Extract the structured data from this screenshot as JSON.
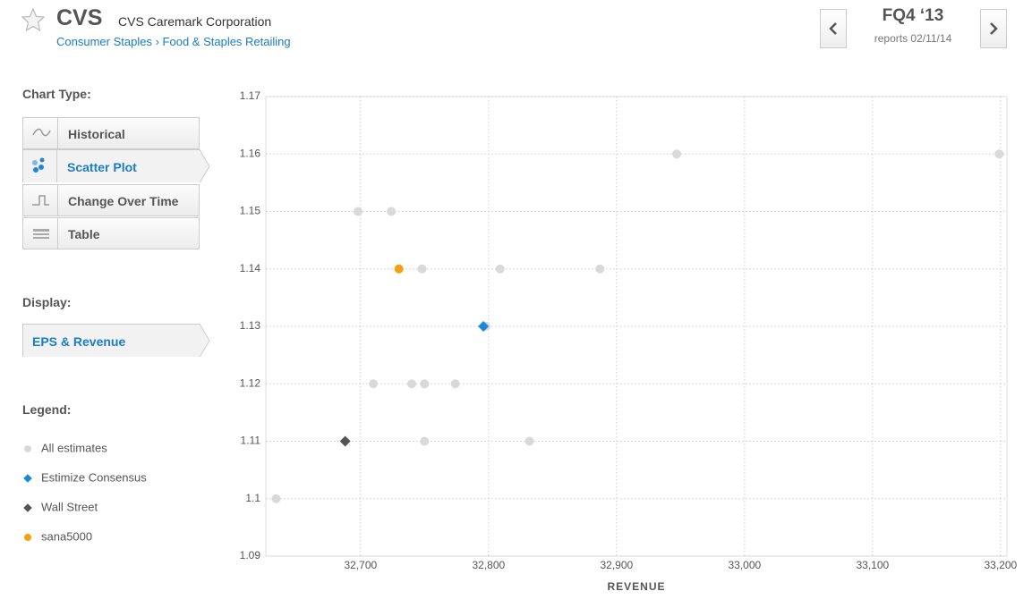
{
  "header": {
    "ticker": "CVS",
    "company": "CVS Caremark Corporation",
    "breadcrumb": [
      "Consumer Staples",
      "Food & Staples Retailing"
    ],
    "breadcrumb_separator": "›",
    "quarter": "FQ4 ‘13",
    "report_date": "reports 02/11/14"
  },
  "sidebar": {
    "chart_type_label": "Chart Type:",
    "chart_types": [
      "Historical",
      "Scatter Plot",
      "Change Over Time",
      "Table"
    ],
    "display_label": "Display:",
    "display_option": "EPS & Revenue",
    "legend_label": "Legend:"
  },
  "chart_data": {
    "type": "scatter",
    "x_label": "REVENUE",
    "xlim": [
      32626,
      33205
    ],
    "xticks": [
      {
        "value": 32700,
        "label": "32,700"
      },
      {
        "value": 32800,
        "label": "32,800"
      },
      {
        "value": 32900,
        "label": "32,900"
      },
      {
        "value": 33000,
        "label": "33,000"
      },
      {
        "value": 33100,
        "label": "33,100"
      },
      {
        "value": 33200,
        "label": "33,200"
      }
    ],
    "ylim": [
      1.09,
      1.17
    ],
    "yticks": [
      1.09,
      1.1,
      1.11,
      1.12,
      1.13,
      1.14,
      1.15,
      1.16,
      1.17
    ],
    "grid": true,
    "series": [
      {
        "name": "All estimates",
        "color": "#d9d9d9",
        "marker": "circle",
        "x": [
          32634,
          32698,
          32724,
          32748,
          32809,
          32887,
          32947,
          33199,
          32710,
          32740,
          32750,
          32774,
          32750,
          32832,
          32798
        ],
        "values": [
          1.1,
          1.15,
          1.15,
          1.14,
          1.14,
          1.14,
          1.16,
          1.16,
          1.12,
          1.12,
          1.12,
          1.12,
          1.11,
          1.11,
          1.13
        ]
      },
      {
        "name": "Estimize Consensus",
        "color": "#1e88d8",
        "marker": "diamond",
        "x": [
          32796
        ],
        "values": [
          1.13
        ]
      },
      {
        "name": "Wall Street",
        "color": "#555555",
        "marker": "diamond",
        "x": [
          32688
        ],
        "values": [
          1.11
        ]
      },
      {
        "name": "sana5000",
        "color": "#f5a00f",
        "marker": "circle",
        "x": [
          32730
        ],
        "values": [
          1.14
        ]
      }
    ]
  }
}
